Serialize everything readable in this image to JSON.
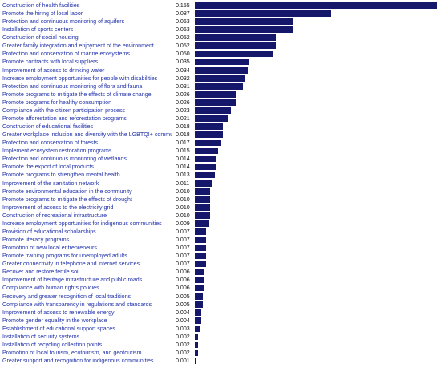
{
  "chart_data": {
    "type": "bar",
    "orientation": "horizontal",
    "bar_color": "#14176a",
    "label_color": "#2233aa",
    "categories": [
      "Construction of health facilities",
      "Promote the hiring of local labor",
      "Protection and continuous monitoring of aquifers",
      "Installation of sports centers",
      "Construction of social housing",
      "Greater family integration and enjoyment of the environment",
      "Protection and conservation of marine ecosystems",
      "Promote contracts with local suppliers",
      "Improvement of access to drinking water",
      "Increase employment opportunities for people with disabilities",
      "Protection and continuous monitoring of flora and fauna",
      "Promote programs to mitigate the effects of climate change",
      "Promote programs for healthy consumption",
      "Compliance with the citizen participation process",
      "Promote afforestation and reforestation programs",
      "Construction of educational facilities",
      "Greater workplace inclusion and diversity with the LGBTQI+ community",
      "Protection and conservation of forests",
      "Implement ecosystem restoration programs",
      "Protection and continuous monitoring of wetlands",
      "Promote the export of local products",
      "Promote programs to strengthen mental health",
      "Improvement of the sanitation network",
      "Promote environmental education in the community",
      "Promote programs to mitigate the effects of drought",
      "Improvement of access to the electricity grid",
      "Construction of recreational infrastructure",
      "Increase employment opportunities for indigenous communities",
      "Provision of educational scholarships",
      "Promote literacy programs",
      "Promotion of new local entrepreneurs",
      "Promote training programs for unemployed adults",
      "Greater connectivity in telephone and internet services",
      "Recover and restore fertile soil",
      "Improvement of heritage infrastructure and public roads",
      "Compliance with human rights policies",
      "Recovery and greater recognition of local traditions",
      "Compliance with transparency in regulations and standards",
      "Improvement of access to renewable energy",
      "Promote gender equality in the workplace",
      "Establishment of educational support spaces",
      "Installation of security systems",
      "Installation of recycling collection points",
      "Promotion of local tourism, ecotourism, and geotourism",
      "Greater support and recognition for indigenous communities"
    ],
    "values": [
      0.155,
      0.087,
      0.063,
      0.063,
      0.052,
      0.052,
      0.05,
      0.035,
      0.034,
      0.032,
      0.031,
      0.026,
      0.026,
      0.023,
      0.021,
      0.018,
      0.018,
      0.017,
      0.015,
      0.014,
      0.014,
      0.013,
      0.011,
      0.01,
      0.01,
      0.01,
      0.01,
      0.009,
      0.007,
      0.007,
      0.007,
      0.007,
      0.007,
      0.006,
      0.006,
      0.006,
      0.005,
      0.005,
      0.004,
      0.004,
      0.003,
      0.002,
      0.002,
      0.002,
      0.001
    ],
    "value_labels": [
      "0.155",
      "0.087",
      "0.063",
      "0.063",
      "0.052",
      "0.052",
      "0.050",
      "0.035",
      "0.034",
      "0.032",
      "0.031",
      "0.026",
      "0.026",
      "0.023",
      "0.021",
      "0.018",
      "0.018",
      "0.017",
      "0.015",
      "0.014",
      "0.014",
      "0.013",
      "0.011",
      "0.010",
      "0.010",
      "0.010",
      "0.010",
      "0.009",
      "0.007",
      "0.007",
      "0.007",
      "0.007",
      "0.007",
      "0.006",
      "0.006",
      "0.006",
      "0.005",
      "0.005",
      "0.004",
      "0.004",
      "0.003",
      "0.002",
      "0.002",
      "0.002",
      "0.001"
    ],
    "xlim": [
      0,
      0.155
    ],
    "grid": false,
    "title": "",
    "xlabel": "",
    "ylabel": ""
  }
}
